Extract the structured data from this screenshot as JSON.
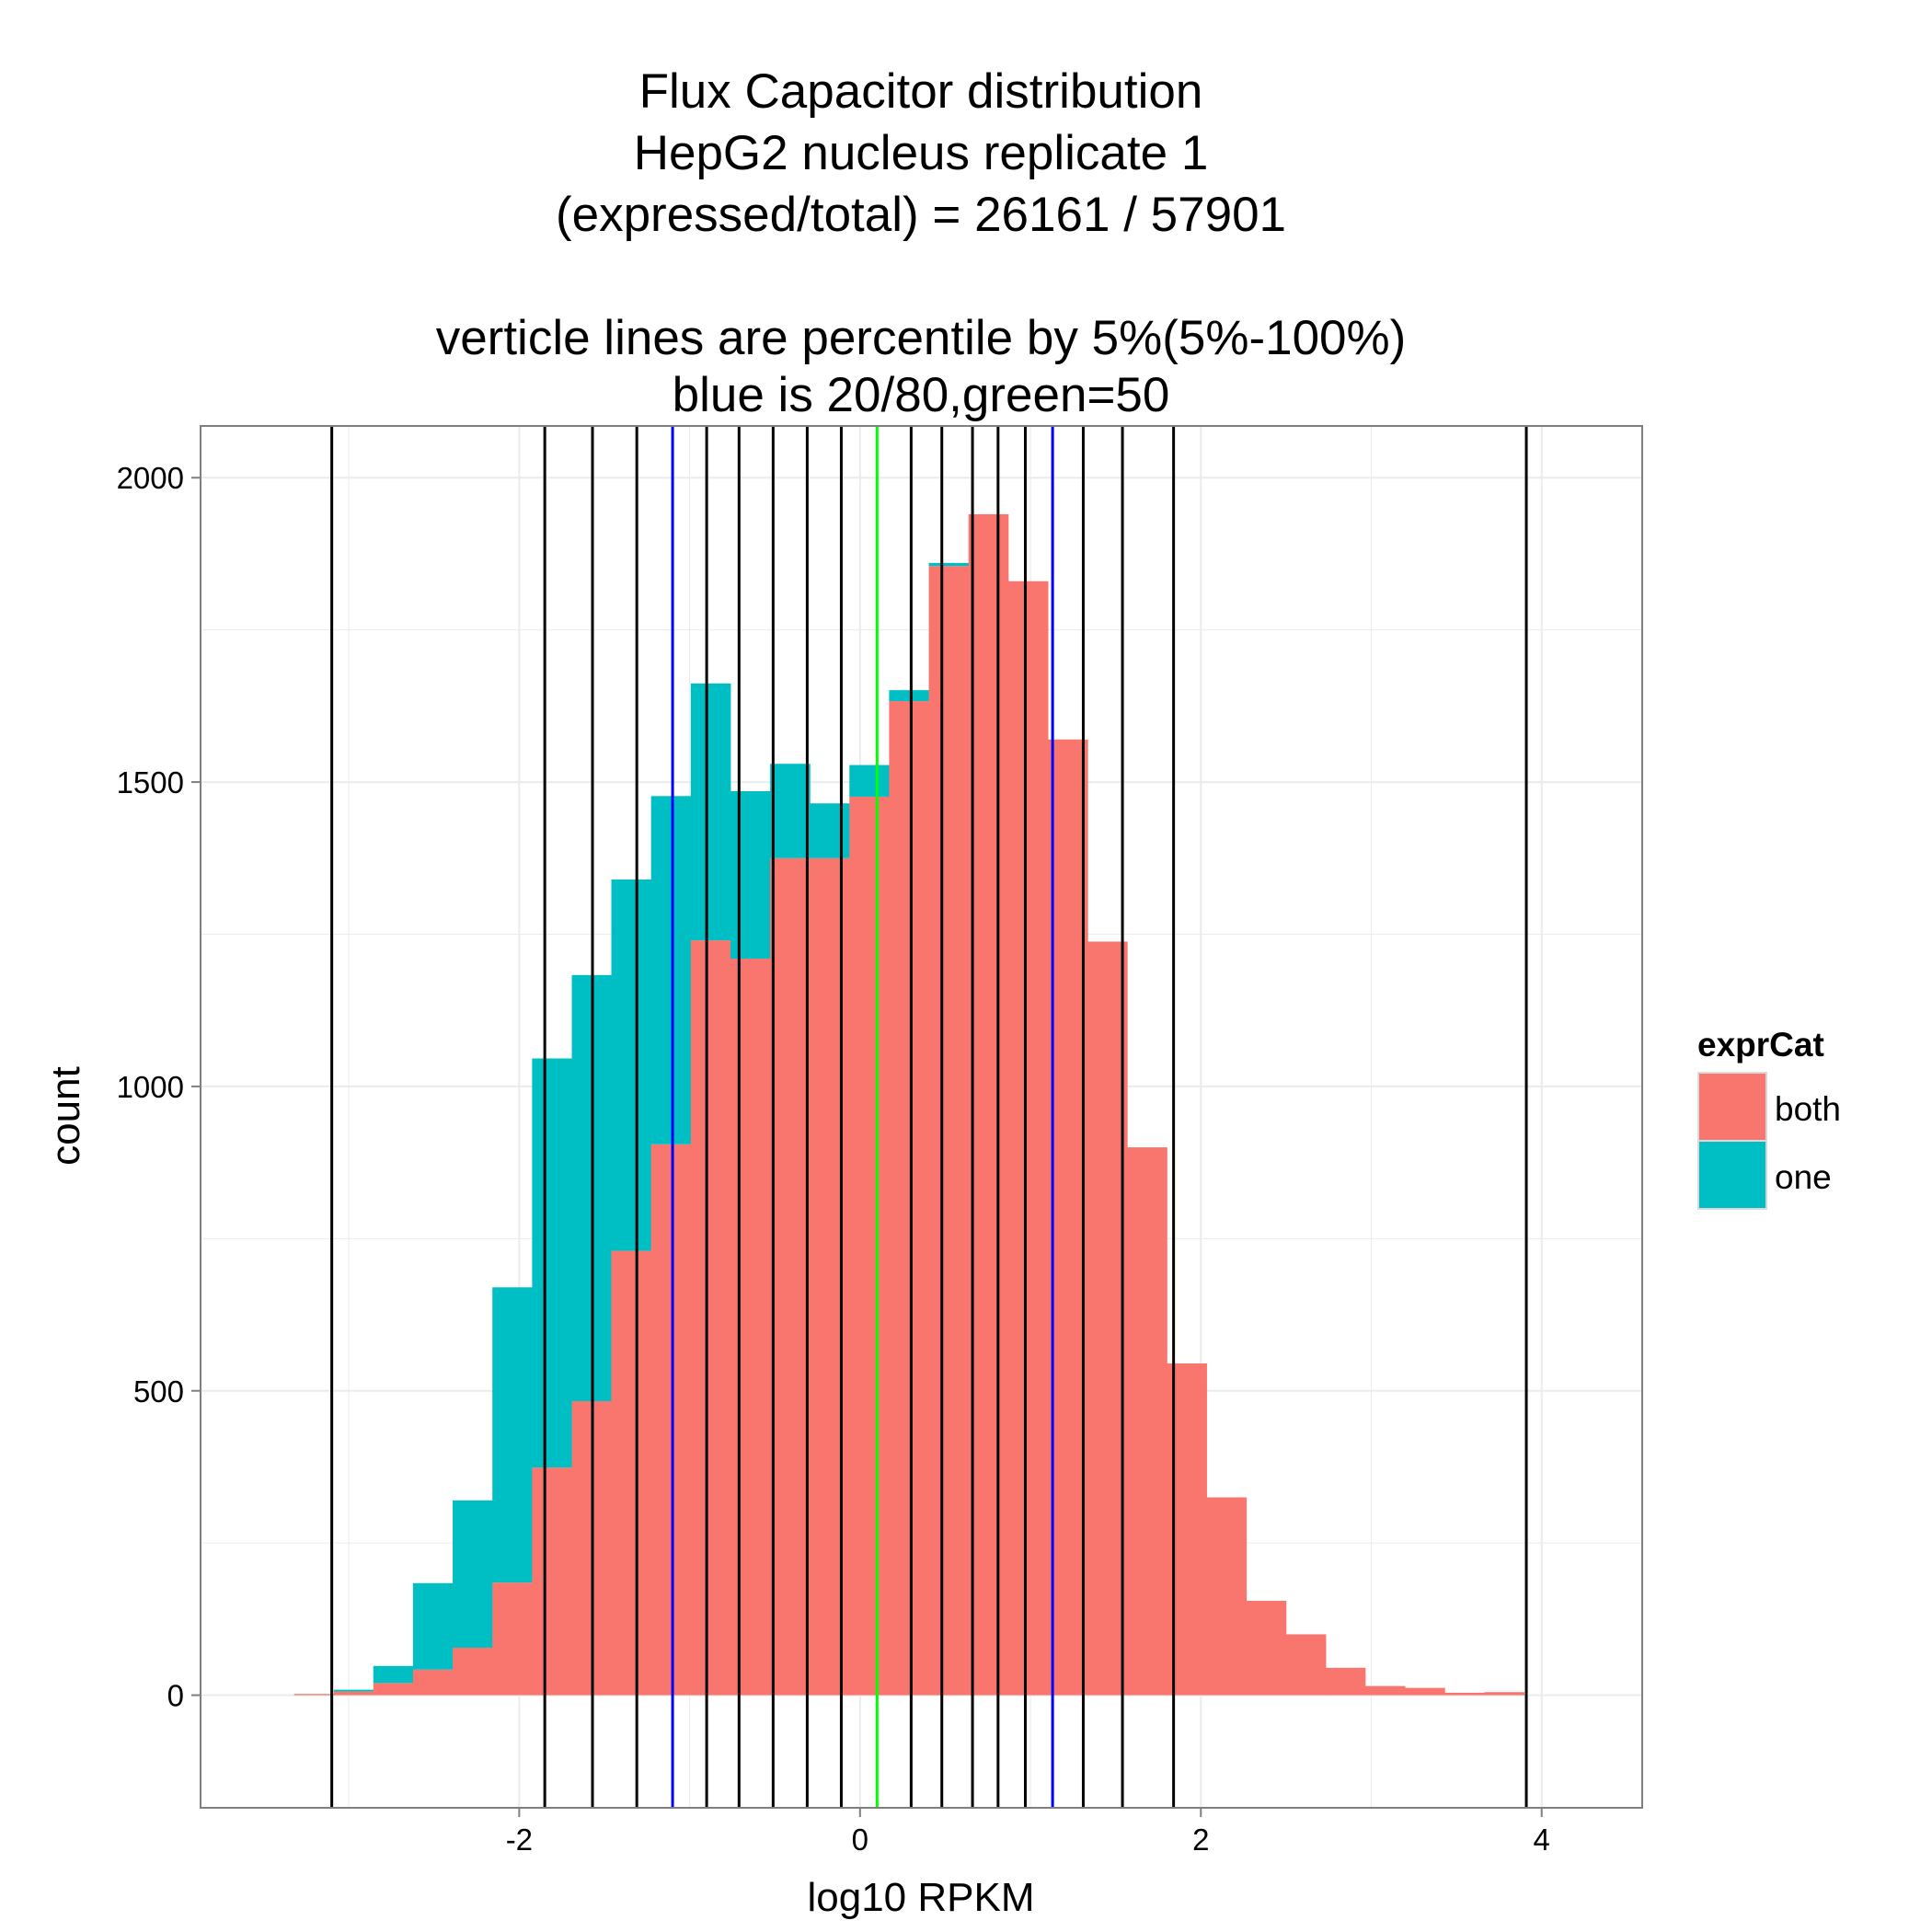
{
  "chart_data": {
    "type": "bar",
    "stacked": true,
    "title_lines": [
      "Flux Capacitor distribution",
      "HepG2 nucleus replicate 1",
      "(expressed/total) = 26161 / 57901",
      "",
      "verticle lines are percentile by 5%(5%-100%)",
      "blue is 20/80,green=50"
    ],
    "xlabel": "log10 RPKM",
    "ylabel": "count",
    "xlim": [
      -3.87,
      4.59
    ],
    "ylim": [
      -185,
      2085
    ],
    "x_ticks": [
      -2,
      0,
      2,
      4
    ],
    "x_tick_labels": [
      "-2",
      "0",
      "2",
      "4"
    ],
    "y_ticks": [
      0,
      500,
      1000,
      1500,
      2000
    ],
    "y_tick_labels": [
      "0",
      "500",
      "1000",
      "1500",
      "2000"
    ],
    "grid": true,
    "legend": {
      "title": "exprCat",
      "position": "right",
      "entries": [
        {
          "label": "both",
          "color": "#F8766D"
        },
        {
          "label": "one",
          "color": "#00BFC4"
        }
      ]
    },
    "bin_width": 0.2328,
    "x": [
      -3.205,
      -2.972,
      -2.74,
      -2.507,
      -2.274,
      -2.041,
      -1.808,
      -1.575,
      -1.343,
      -1.11,
      -0.877,
      -0.644,
      -0.411,
      -0.178,
      0.054,
      0.287,
      0.52,
      0.753,
      0.986,
      1.219,
      1.451,
      1.684,
      1.917,
      2.15,
      2.383,
      2.616,
      2.848,
      3.081,
      3.314,
      3.547,
      3.78
    ],
    "series": [
      {
        "name": "both",
        "color": "#F8766D",
        "values": [
          2,
          6,
          20,
          42,
          78,
          185,
          374,
          483,
          730,
          905,
          1240,
          1210,
          1375,
          1375,
          1476,
          1633,
          1855,
          1940,
          1830,
          1570,
          1238,
          900,
          545,
          325,
          155,
          100,
          45,
          15,
          12,
          4,
          5
        ]
      },
      {
        "name": "one",
        "color": "#00BFC4",
        "values": [
          0,
          3,
          28,
          142,
          242,
          485,
          672,
          700,
          610,
          572,
          422,
          275,
          155,
          90,
          52,
          18,
          5,
          0,
          0,
          0,
          0,
          0,
          0,
          0,
          0,
          0,
          0,
          0,
          0,
          0,
          0
        ]
      }
    ],
    "percentile_lines": [
      {
        "percentile": 5,
        "x": -3.1,
        "color": "#000000"
      },
      {
        "percentile": 10,
        "x": -1.85,
        "color": "#000000"
      },
      {
        "percentile": 15,
        "x": -1.57,
        "color": "#000000"
      },
      {
        "percentile": 20,
        "x": -1.1,
        "color": "#0000FF"
      },
      {
        "percentile": 25,
        "x": -1.31,
        "color": "#000000"
      },
      {
        "percentile": 30,
        "x": -0.9,
        "color": "#000000"
      },
      {
        "percentile": 35,
        "x": -0.71,
        "color": "#000000"
      },
      {
        "percentile": 40,
        "x": -0.51,
        "color": "#000000"
      },
      {
        "percentile": 45,
        "x": -0.31,
        "color": "#000000"
      },
      {
        "percentile": 50,
        "x": 0.1,
        "color": "#00FF00"
      },
      {
        "percentile": 55,
        "x": -0.11,
        "color": "#000000"
      },
      {
        "percentile": 60,
        "x": 0.3,
        "color": "#000000"
      },
      {
        "percentile": 65,
        "x": 0.48,
        "color": "#000000"
      },
      {
        "percentile": 70,
        "x": 0.66,
        "color": "#000000"
      },
      {
        "percentile": 75,
        "x": 0.81,
        "color": "#000000"
      },
      {
        "percentile": 80,
        "x": 1.13,
        "color": "#0000FF"
      },
      {
        "percentile": 85,
        "x": 0.97,
        "color": "#000000"
      },
      {
        "percentile": 90,
        "x": 1.31,
        "color": "#000000"
      },
      {
        "percentile": 95,
        "x": 1.54,
        "color": "#000000"
      },
      {
        "percentile": 97,
        "x": 1.84,
        "color": "#000000"
      },
      {
        "percentile": 100,
        "x": 3.91,
        "color": "#000000"
      }
    ]
  }
}
